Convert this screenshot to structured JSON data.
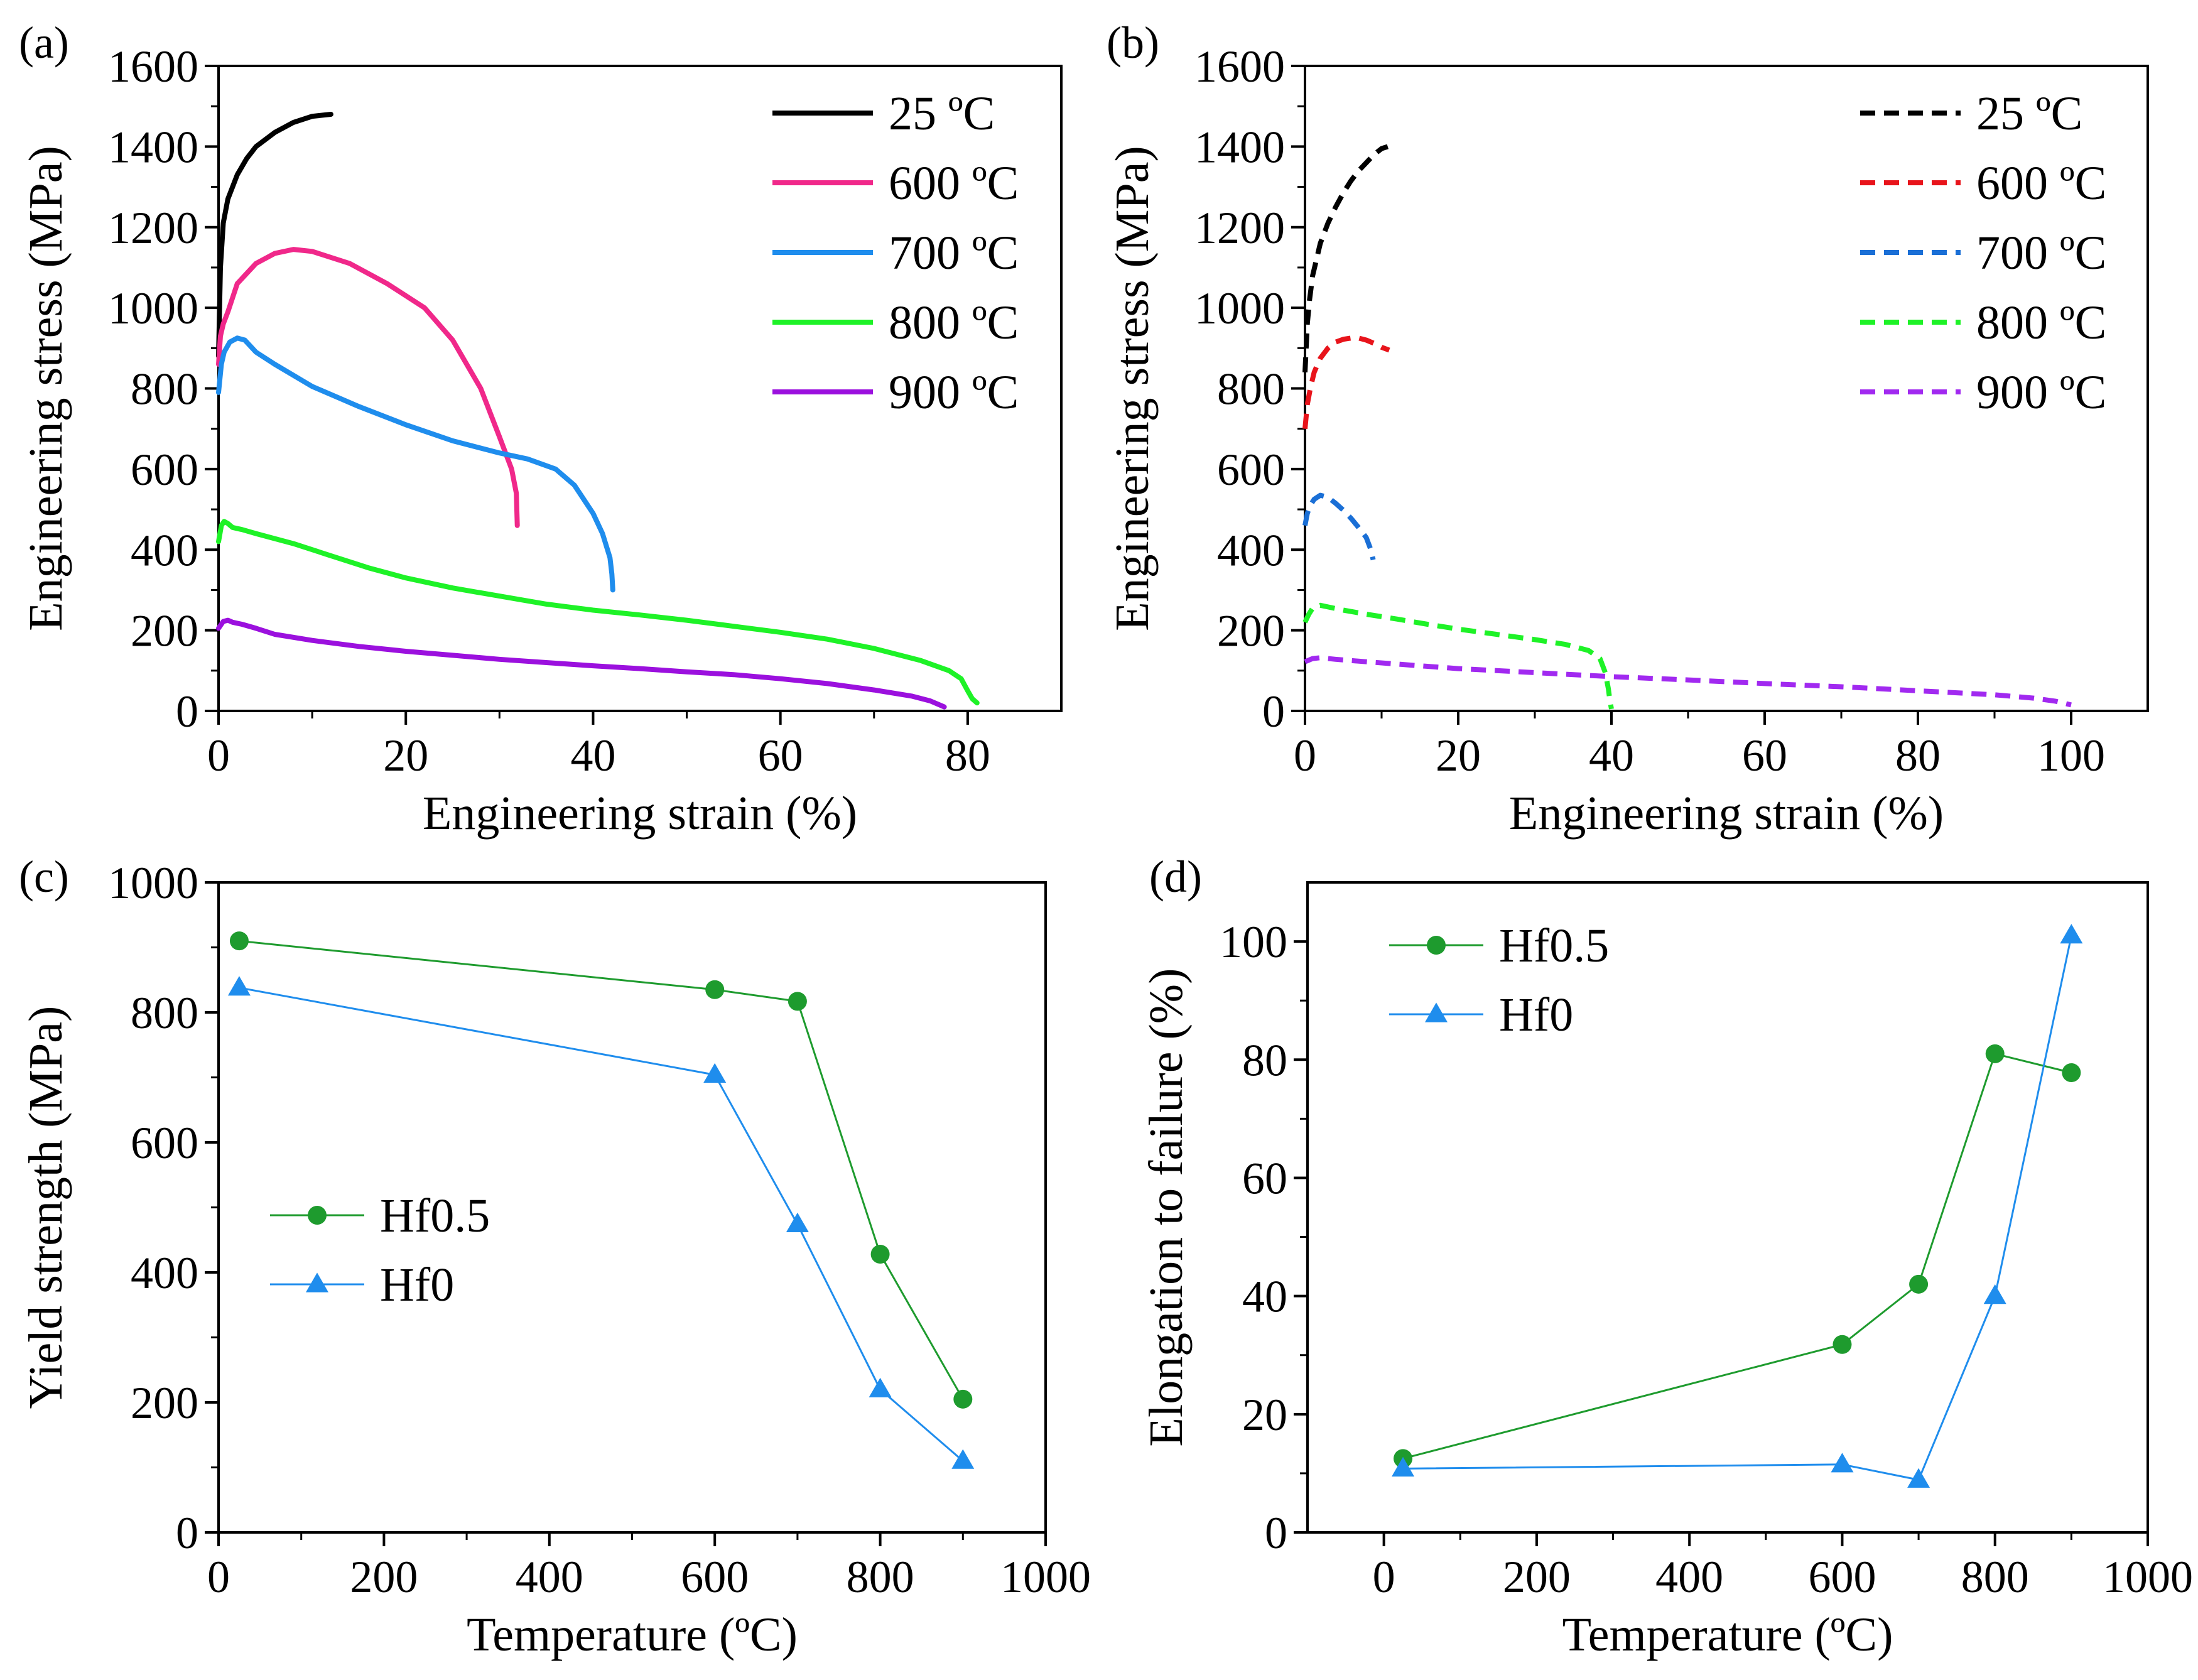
{
  "chart_data": [
    {
      "panel": "(a)",
      "type": "line",
      "xlabel": "Engineering strain (%)",
      "ylabel": "Engineering stress (MPa)",
      "xlim": [
        0,
        90
      ],
      "ylim": [
        0,
        1600
      ],
      "xticks": [
        0,
        20,
        40,
        60,
        80
      ],
      "yticks": [
        0,
        200,
        400,
        600,
        800,
        1000,
        1200,
        1400,
        1600
      ],
      "line_style": "solid",
      "legend_position": "top-right",
      "series": [
        {
          "name": "25 ºC",
          "color": "#000000",
          "x": [
            0,
            0.2,
            0.5,
            1,
            2,
            3,
            4,
            6,
            8,
            10,
            12
          ],
          "y": [
            880,
            1100,
            1210,
            1270,
            1330,
            1370,
            1400,
            1435,
            1460,
            1475,
            1480
          ]
        },
        {
          "name": "600 ºC",
          "color": "#f0288a",
          "x": [
            0,
            0.2,
            0.5,
            1,
            2,
            4,
            6,
            8,
            10,
            14,
            18,
            22,
            25,
            28,
            30,
            31.3,
            31.8,
            31.9
          ],
          "y": [
            860,
            930,
            960,
            990,
            1060,
            1110,
            1135,
            1145,
            1140,
            1110,
            1060,
            1000,
            920,
            800,
            680,
            600,
            540,
            460
          ]
        },
        {
          "name": "700 ºC",
          "color": "#1f8ded",
          "x": [
            0,
            0.3,
            0.6,
            1.2,
            2,
            2.8,
            4,
            6,
            10,
            15,
            20,
            25,
            30,
            33,
            36,
            38,
            40,
            41,
            41.8,
            42,
            42.1
          ],
          "y": [
            790,
            860,
            890,
            915,
            925,
            920,
            890,
            860,
            805,
            755,
            710,
            670,
            640,
            625,
            600,
            560,
            490,
            440,
            380,
            340,
            300
          ]
        },
        {
          "name": "800 ºC",
          "color": "#1ef227",
          "x": [
            0,
            0.3,
            0.6,
            1,
            1.5,
            2.5,
            4,
            8,
            12,
            16,
            20,
            25,
            30,
            35,
            40,
            45,
            50,
            55,
            60,
            65,
            70,
            75,
            78,
            79.3,
            80,
            80.5,
            81
          ],
          "y": [
            420,
            460,
            470,
            465,
            455,
            450,
            440,
            415,
            385,
            355,
            330,
            305,
            285,
            265,
            250,
            238,
            225,
            210,
            195,
            178,
            155,
            125,
            100,
            80,
            50,
            30,
            20
          ]
        },
        {
          "name": "900 ºC",
          "color": "#9b10de",
          "x": [
            0,
            0.5,
            1,
            1.5,
            2.5,
            4,
            6,
            10,
            15,
            20,
            25,
            30,
            35,
            40,
            45,
            50,
            55,
            60,
            65,
            70,
            74,
            76,
            77.5
          ],
          "y": [
            205,
            222,
            225,
            220,
            215,
            205,
            190,
            175,
            160,
            148,
            138,
            128,
            120,
            112,
            105,
            97,
            90,
            80,
            68,
            52,
            37,
            25,
            10
          ]
        }
      ]
    },
    {
      "panel": "(b)",
      "type": "line",
      "xlabel": "Engineering strain (%)",
      "ylabel": "Engineering stress (MPa)",
      "xlim": [
        0,
        110
      ],
      "ylim": [
        0,
        1600
      ],
      "xticks": [
        0,
        20,
        40,
        60,
        80,
        100
      ],
      "yticks": [
        0,
        200,
        400,
        600,
        800,
        1000,
        1200,
        1400,
        1600
      ],
      "line_style": "dashed",
      "legend_position": "top-right",
      "series": [
        {
          "name": "25 ºC",
          "color": "#000000",
          "x": [
            0,
            0.3,
            0.6,
            1,
            2,
            3,
            4,
            5,
            6,
            7,
            8,
            9,
            10,
            10.8
          ],
          "y": [
            840,
            960,
            1020,
            1080,
            1160,
            1210,
            1250,
            1285,
            1315,
            1340,
            1360,
            1380,
            1395,
            1400
          ]
        },
        {
          "name": "600 ºC",
          "color": "#e8141b",
          "x": [
            0,
            0.3,
            0.7,
            1.2,
            2,
            3,
            4,
            5,
            6,
            7,
            8,
            9,
            10,
            11
          ],
          "y": [
            700,
            760,
            800,
            840,
            875,
            900,
            915,
            922,
            925,
            925,
            920,
            912,
            902,
            895
          ]
        },
        {
          "name": "700 ºC",
          "color": "#1a6fd6",
          "x": [
            0,
            0.3,
            0.7,
            1.2,
            2,
            3,
            4,
            5,
            6,
            7,
            8,
            8.6,
            8.9
          ],
          "y": [
            460,
            490,
            510,
            525,
            535,
            530,
            515,
            498,
            478,
            455,
            430,
            400,
            375
          ]
        },
        {
          "name": "800 ºC",
          "color": "#1ef227",
          "x": [
            0,
            0.5,
            1,
            2,
            3,
            5,
            8,
            12,
            16,
            20,
            25,
            30,
            34,
            37,
            38.5,
            39.2,
            39.6,
            39.8,
            40
          ],
          "y": [
            220,
            240,
            255,
            262,
            258,
            250,
            240,
            228,
            215,
            203,
            190,
            177,
            165,
            150,
            130,
            95,
            55,
            25,
            5
          ]
        },
        {
          "name": "900 ºC",
          "color": "#a129f0",
          "x": [
            0,
            1,
            2,
            4,
            8,
            15,
            20,
            30,
            40,
            50,
            60,
            70,
            80,
            90,
            95,
            98,
            100
          ],
          "y": [
            122,
            130,
            132,
            128,
            122,
            112,
            105,
            95,
            85,
            77,
            68,
            60,
            50,
            40,
            32,
            24,
            15
          ]
        }
      ]
    },
    {
      "panel": "(c)",
      "type": "line",
      "xlabel": "Temperature (ºC)",
      "ylabel": "Yield strength (MPa)",
      "xlim": [
        0,
        1000
      ],
      "ylim": [
        0,
        1000
      ],
      "xticks": [
        0,
        200,
        400,
        600,
        800,
        1000
      ],
      "yticks": [
        0,
        200,
        400,
        600,
        800,
        1000
      ],
      "legend_position": "middle-left",
      "series": [
        {
          "name": "Hf0.5",
          "color": "#1e9b2e",
          "marker": "circle",
          "x": [
            25,
            600,
            700,
            800,
            900
          ],
          "y": [
            910,
            835,
            817,
            428,
            205
          ]
        },
        {
          "name": "Hf0",
          "color": "#1f8ded",
          "marker": "triangle",
          "x": [
            25,
            600,
            700,
            800,
            900
          ],
          "y": [
            838,
            704,
            474,
            220,
            110
          ]
        }
      ]
    },
    {
      "panel": "(d)",
      "type": "line",
      "xlabel": "Temperature (ºC)",
      "ylabel": "Elongation to failure (%)",
      "xlim": [
        -100,
        1000
      ],
      "ylim": [
        0,
        110
      ],
      "xticks": [
        0,
        200,
        400,
        600,
        800,
        1000
      ],
      "yticks": [
        0,
        20,
        40,
        60,
        80,
        100
      ],
      "legend_position": "top-left",
      "series": [
        {
          "name": "Hf0.5",
          "color": "#1e9b2e",
          "marker": "circle",
          "x": [
            25,
            600,
            700,
            800,
            900
          ],
          "y": [
            12.5,
            31.8,
            42,
            81,
            77.8
          ]
        },
        {
          "name": "Hf0",
          "color": "#1f8ded",
          "marker": "triangle",
          "x": [
            25,
            600,
            700,
            800,
            900
          ],
          "y": [
            10.8,
            11.5,
            8.9,
            40,
            101
          ]
        }
      ]
    }
  ]
}
